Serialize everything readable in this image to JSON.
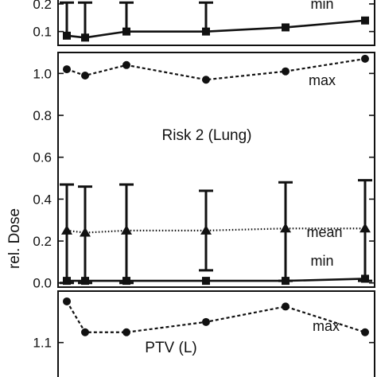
{
  "y_axis_title": "rel. Dose",
  "chart_data": [
    {
      "type": "line",
      "panel_title": "",
      "ylim": [
        0.05,
        0.22
      ],
      "y_ticks": [
        0.1,
        0.2
      ],
      "x": [
        1,
        2,
        3,
        4,
        5,
        6
      ],
      "series": [
        {
          "name": "min",
          "marker": "square",
          "line": "solid",
          "values": [
            0.085,
            0.078,
            0.1,
            0.1,
            0.115,
            0.14
          ]
        }
      ],
      "error_bars_upper": [
        0.205,
        0.205,
        0.205,
        0.205,
        null,
        null
      ],
      "clipped": true
    },
    {
      "type": "line",
      "panel_title": "Risk 2 (Lung)",
      "ylim": [
        -0.02,
        1.1
      ],
      "y_ticks": [
        0.0,
        0.2,
        0.4,
        0.6,
        0.8,
        1.0
      ],
      "y_tick_labels": [
        "0.0",
        "0.2",
        "0.4",
        "0.6",
        "0.8",
        "1.0"
      ],
      "x": [
        1,
        2,
        3,
        4,
        5,
        6
      ],
      "series": [
        {
          "name": "max",
          "marker": "circle",
          "line": "dashed",
          "values": [
            1.02,
            0.99,
            1.04,
            0.97,
            1.01,
            1.07
          ]
        },
        {
          "name": "mean",
          "marker": "triangle",
          "line": "dotted",
          "values": [
            0.25,
            0.24,
            0.25,
            0.25,
            0.26,
            0.26
          ]
        },
        {
          "name": "min",
          "marker": "square",
          "line": "solid",
          "values": [
            0.01,
            0.01,
            0.01,
            0.01,
            0.01,
            0.02
          ]
        }
      ],
      "error_bars": [
        [
          0.0,
          0.47
        ],
        [
          0.0,
          0.46
        ],
        [
          0.0,
          0.47
        ],
        [
          0.06,
          0.44
        ],
        [
          0.01,
          0.48
        ],
        [
          0.01,
          0.49
        ]
      ]
    },
    {
      "type": "line",
      "panel_title": "PTV (L)",
      "ylim": [
        1.03,
        1.2
      ],
      "y_ticks": [
        1.1
      ],
      "y_tick_labels": [
        "1.1"
      ],
      "x": [
        1,
        2,
        3,
        4,
        5,
        6
      ],
      "series": [
        {
          "name": "max",
          "marker": "circle",
          "line": "dashed",
          "values": [
            1.18,
            1.12,
            1.12,
            1.14,
            1.17,
            1.12
          ]
        }
      ],
      "clipped": true
    }
  ]
}
